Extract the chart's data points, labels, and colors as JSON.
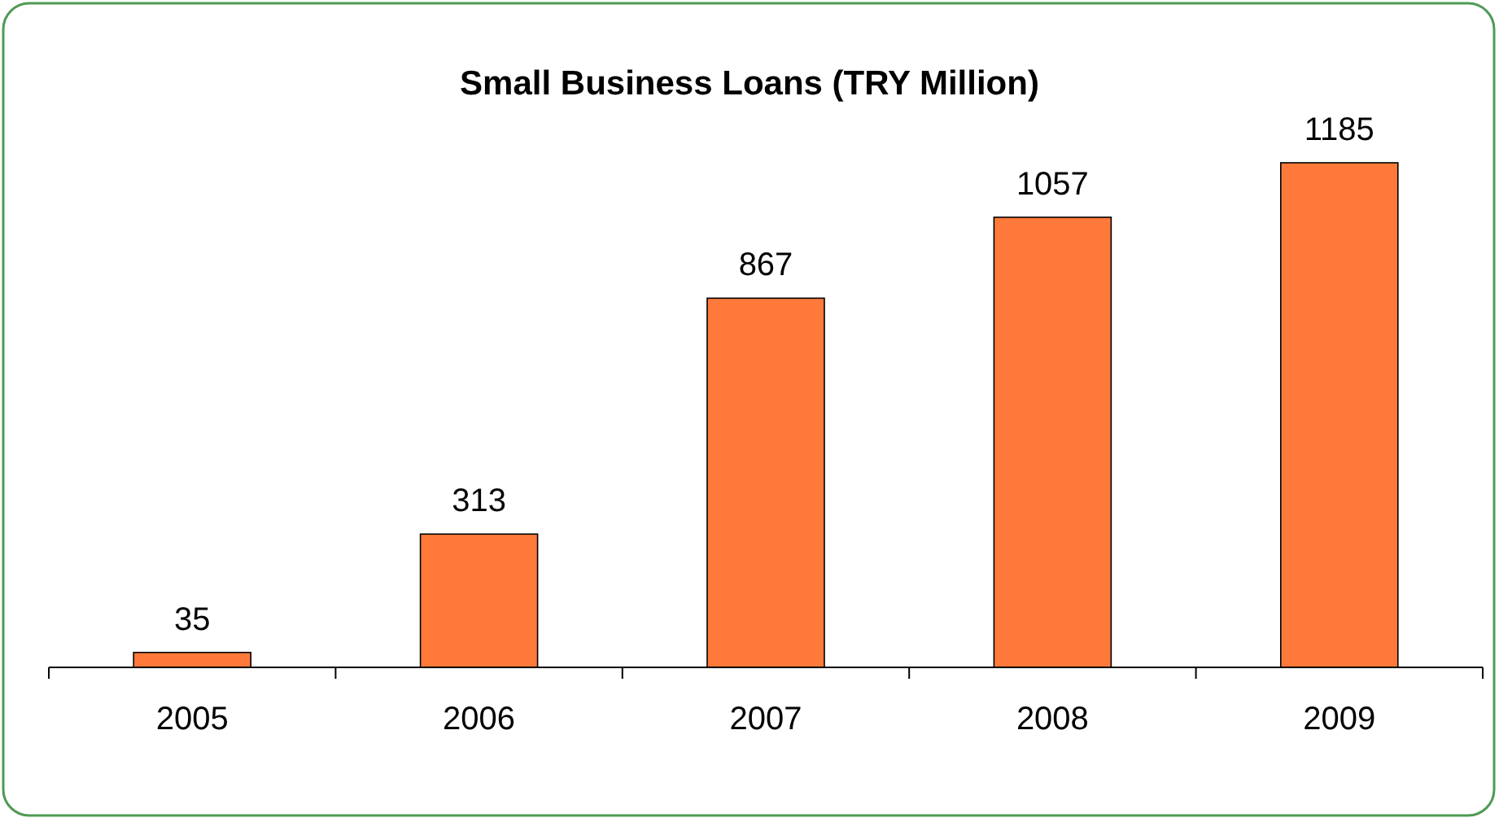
{
  "chart_data": {
    "type": "bar",
    "title": "Small Business Loans (TRY Million)",
    "categories": [
      "2005",
      "2006",
      "2007",
      "2008",
      "2009"
    ],
    "values": [
      35,
      313,
      867,
      1057,
      1185
    ],
    "color": "#ff7a3a",
    "data_labels": true
  }
}
